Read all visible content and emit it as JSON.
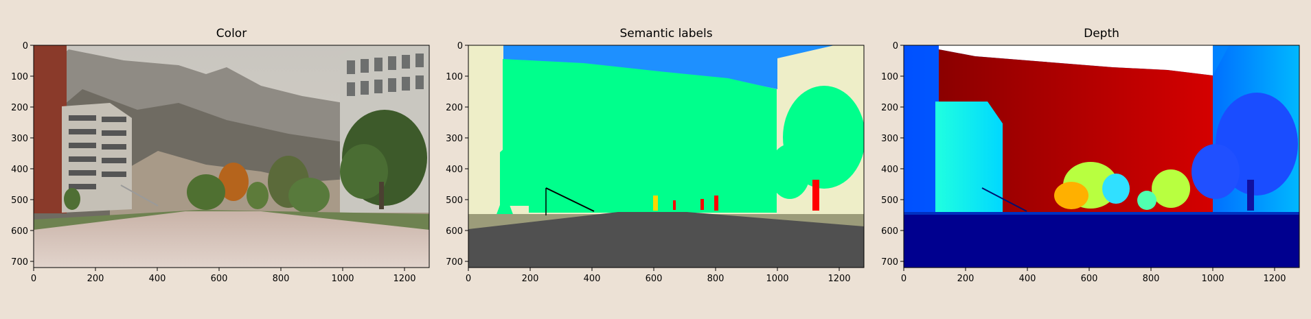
{
  "chart_data": [
    {
      "type": "image",
      "title": "Color",
      "xlim": [
        0,
        1280
      ],
      "ylim": [
        720,
        0
      ],
      "xticks": [
        "0",
        "200",
        "400",
        "600",
        "800",
        "1000",
        "1200"
      ],
      "yticks": [
        "0",
        "100",
        "200",
        "300",
        "400",
        "500",
        "600",
        "700"
      ],
      "xtick_values": [
        0,
        200,
        400,
        600,
        800,
        1000,
        1200
      ],
      "ytick_values": [
        0,
        100,
        200,
        300,
        400,
        500,
        600,
        700
      ]
    },
    {
      "type": "image",
      "title": "Semantic labels",
      "xlim": [
        0,
        1280
      ],
      "ylim": [
        720,
        0
      ],
      "xticks": [
        "0",
        "200",
        "400",
        "600",
        "800",
        "1000",
        "1200"
      ],
      "yticks": [
        "0",
        "100",
        "200",
        "300",
        "400",
        "500",
        "600",
        "700"
      ],
      "xtick_values": [
        0,
        200,
        400,
        600,
        800,
        1000,
        1200
      ],
      "ytick_values": [
        0,
        100,
        200,
        300,
        400,
        500,
        600,
        700
      ]
    },
    {
      "type": "image",
      "title": "Depth",
      "xlim": [
        0,
        1280
      ],
      "ylim": [
        720,
        0
      ],
      "xticks": [
        "0",
        "200",
        "400",
        "600",
        "800",
        "1000",
        "1200"
      ],
      "yticks": [
        "0",
        "100",
        "200",
        "300",
        "400",
        "500",
        "600",
        "700"
      ],
      "xtick_values": [
        0,
        200,
        400,
        600,
        800,
        1000,
        1200
      ],
      "ytick_values": [
        0,
        100,
        200,
        300,
        400,
        500,
        600,
        700
      ]
    }
  ]
}
